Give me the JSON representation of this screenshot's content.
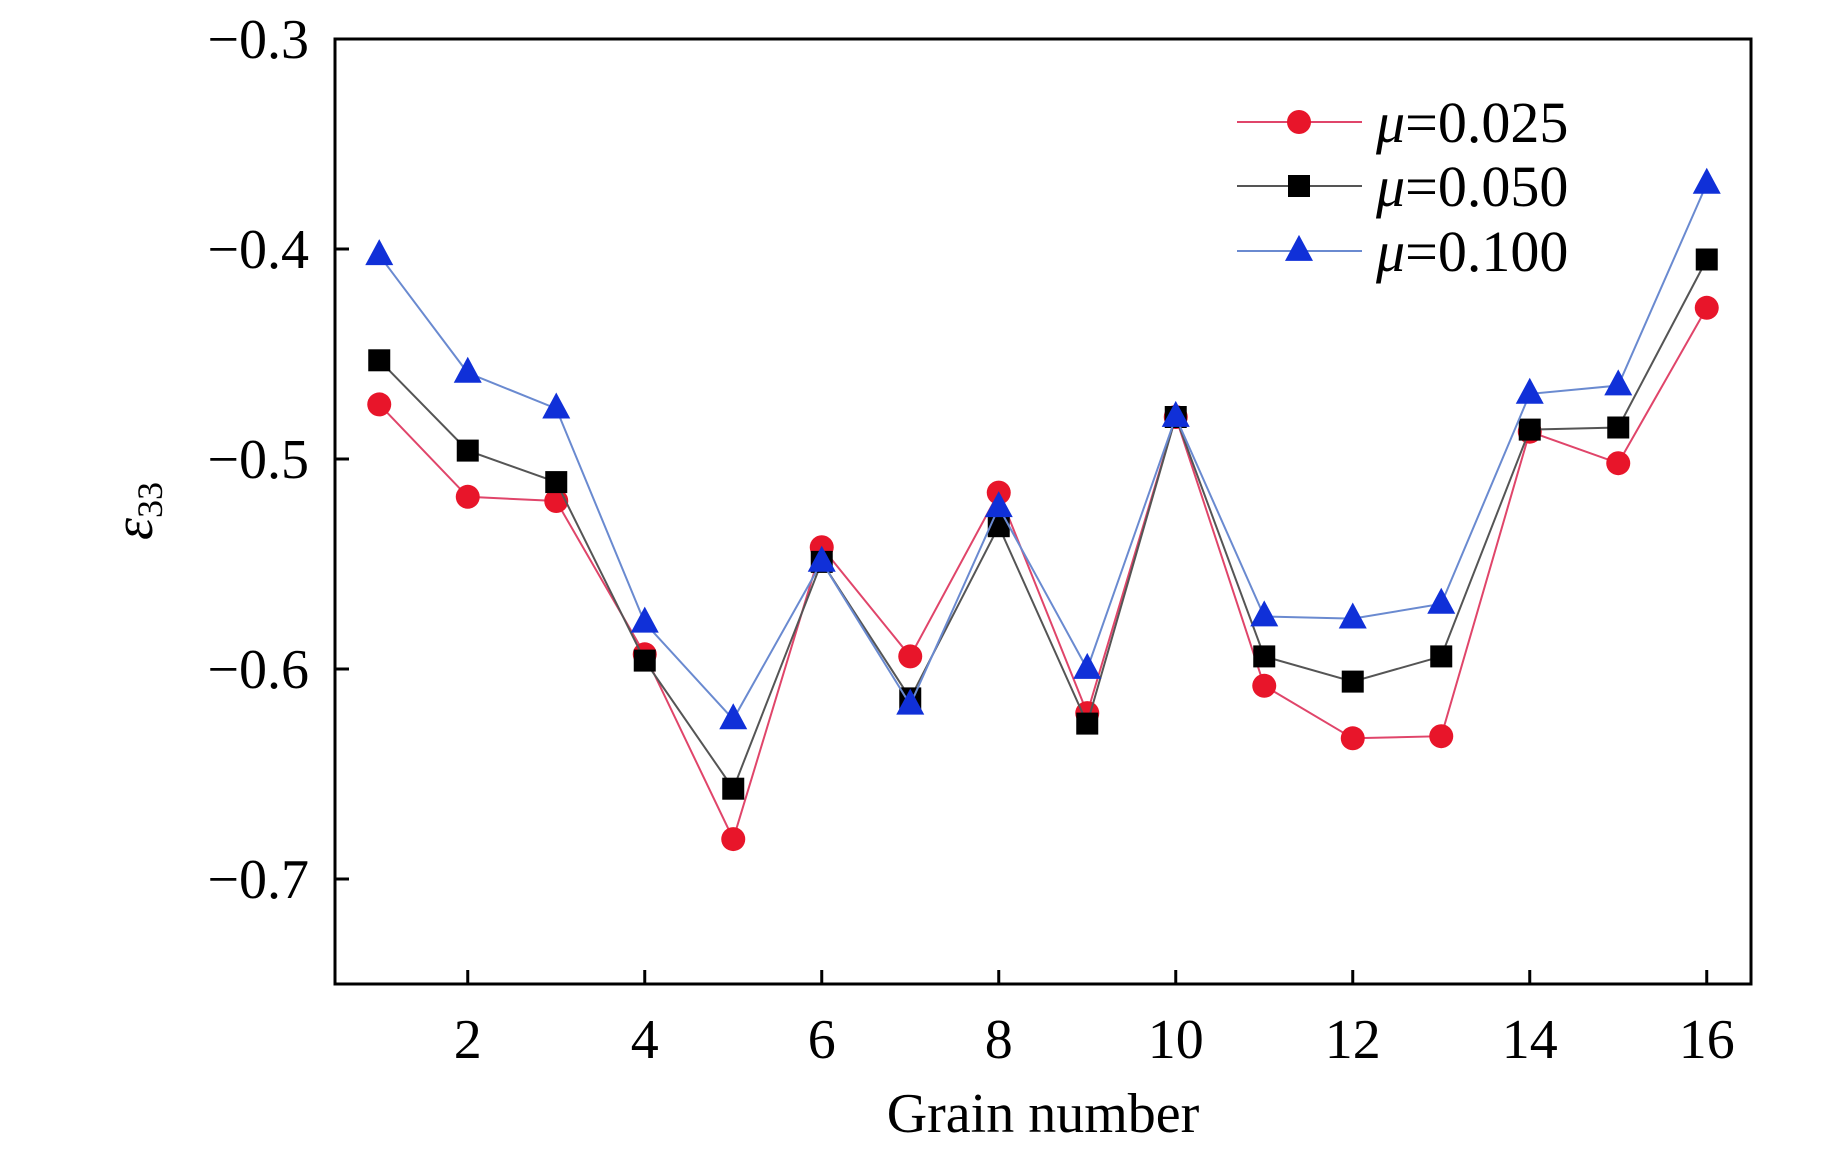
{
  "chart_data": {
    "type": "line",
    "title": "",
    "xlabel": "Grain number",
    "ylabel_symbol": "ε",
    "ylabel_subscript": "33",
    "x": [
      1,
      2,
      3,
      4,
      5,
      6,
      7,
      8,
      9,
      10,
      11,
      12,
      13,
      14,
      15,
      16
    ],
    "xlim": [
      0.5,
      16.5
    ],
    "ylim": [
      -0.75,
      -0.3
    ],
    "xticks": [
      2,
      4,
      6,
      8,
      10,
      12,
      14,
      16
    ],
    "xtick_labels": [
      "2",
      "4",
      "6",
      "8",
      "10",
      "12",
      "14",
      "16"
    ],
    "yticks": [
      -0.3,
      -0.4,
      -0.5,
      -0.6,
      -0.7
    ],
    "ytick_labels": [
      "−0.3",
      "−0.4",
      "−0.5",
      "−0.6",
      "−0.7"
    ],
    "grid": false,
    "legend_position": "top-right",
    "series": [
      {
        "name_symbol": "μ",
        "name_value": "=0.025",
        "color": "#e8152a",
        "line_color": "#e0456a",
        "marker": "circle",
        "values": [
          -0.474,
          -0.518,
          -0.52,
          -0.593,
          -0.681,
          -0.542,
          -0.594,
          -0.516,
          -0.621,
          -0.48,
          -0.608,
          -0.633,
          -0.632,
          -0.487,
          -0.502,
          -0.428
        ]
      },
      {
        "name_symbol": "μ",
        "name_value": "=0.050",
        "color": "#000000",
        "line_color": "#555555",
        "marker": "square",
        "values": [
          -0.453,
          -0.496,
          -0.511,
          -0.596,
          -0.657,
          -0.549,
          -0.614,
          -0.532,
          -0.626,
          -0.48,
          -0.594,
          -0.606,
          -0.594,
          -0.486,
          -0.485,
          -0.405
        ]
      },
      {
        "name_symbol": "μ",
        "name_value": "=0.100",
        "color": "#1030d8",
        "line_color": "#6a8ad0",
        "marker": "triangle",
        "values": [
          -0.403,
          -0.459,
          -0.476,
          -0.578,
          -0.624,
          -0.549,
          -0.617,
          -0.523,
          -0.6,
          -0.48,
          -0.575,
          -0.576,
          -0.569,
          -0.469,
          -0.465,
          -0.369
        ]
      }
    ]
  }
}
